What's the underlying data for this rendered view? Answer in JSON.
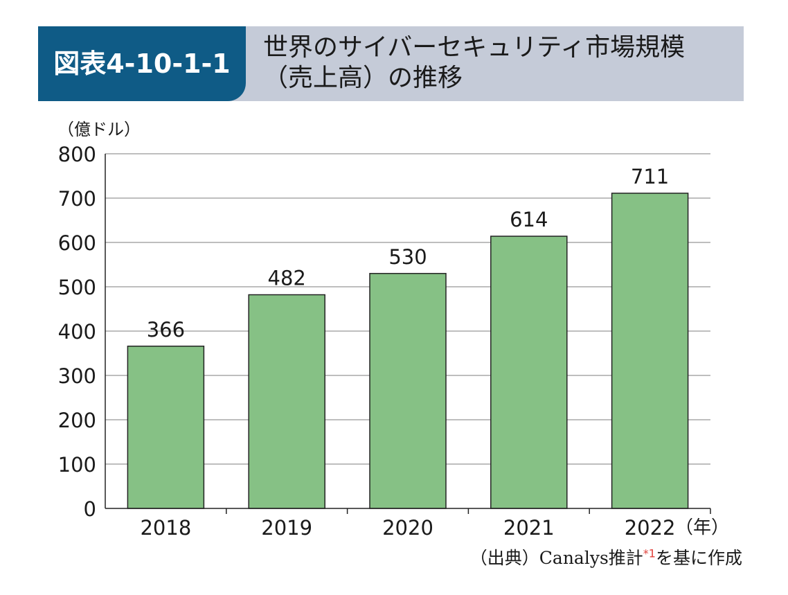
{
  "header": {
    "badge": "図表4-10-1-1",
    "title_line1": "世界のサイバーセキュリティ市場規模",
    "title_line2": "（売上高）の推移"
  },
  "chart_data": {
    "type": "bar",
    "ylabel": "（億ドル）",
    "xlabel": "（年）",
    "ylim": [
      0,
      800
    ],
    "yticks": [
      0,
      100,
      200,
      300,
      400,
      500,
      600,
      700,
      800
    ],
    "categories": [
      "2018",
      "2019",
      "2020",
      "2021",
      "2022"
    ],
    "values": [
      366,
      482,
      530,
      614,
      711
    ],
    "data_labels": [
      "366",
      "482",
      "530",
      "614",
      "711"
    ],
    "grid": true,
    "bar_color": "#86c185"
  },
  "source": {
    "prefix": "（出典）Canalys推計",
    "mark": "*1",
    "suffix": "を基に作成"
  },
  "colors": {
    "badge_bg": "#0f5b86",
    "header_bg": "#c5cbd8",
    "source_mark": "#e0403a"
  }
}
